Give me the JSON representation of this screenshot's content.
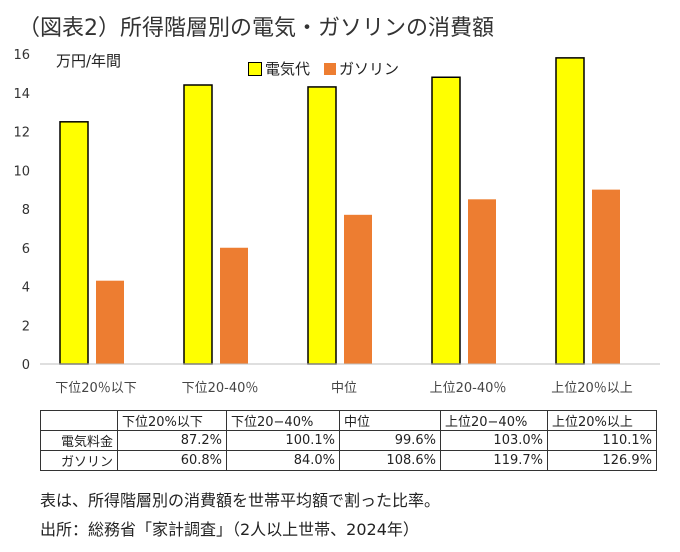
{
  "title": "（図表2）所得階層別の電気・ガソリンの消費額",
  "chart_data": {
    "type": "bar",
    "title": "（図表2）所得階層別の電気・ガソリンの消費額",
    "ylabel": "万円/年間",
    "xlabel": "",
    "categories": [
      "下位20％以下",
      "下位20-40％",
      "中位",
      "上位20-40％",
      "上位20％以上"
    ],
    "series": [
      {
        "name": "電気代",
        "values": [
          12.5,
          14.4,
          14.3,
          14.8,
          15.8
        ],
        "color": "#ffff00"
      },
      {
        "name": "ガソリン",
        "values": [
          4.3,
          6.0,
          7.7,
          8.5,
          9.0
        ],
        "color": "#ed7d31"
      }
    ],
    "ylim": [
      0,
      16
    ],
    "yticks": [
      "0",
      "2",
      "4",
      "6",
      "8",
      "10",
      "12",
      "14",
      "16"
    ],
    "grid": false,
    "legend": "top"
  },
  "table": {
    "headers": [
      "",
      "下位20%以下",
      "下位20−40%",
      "中位",
      "上位20−40%",
      "上位20%以上"
    ],
    "rows": [
      {
        "label": "電気料金",
        "values": [
          "87.2%",
          "100.1%",
          "99.6%",
          "103.0%",
          "110.1%"
        ]
      },
      {
        "label": "ガソリン",
        "values": [
          "60.8%",
          "84.0%",
          "108.6%",
          "119.7%",
          "126.9%"
        ]
      }
    ]
  },
  "notes": {
    "line1": "表は、所得階層別の消費額を世帯平均額で割った比率。",
    "line2": "出所：総務省「家計調査」（2人以上世帯、2024年）"
  }
}
